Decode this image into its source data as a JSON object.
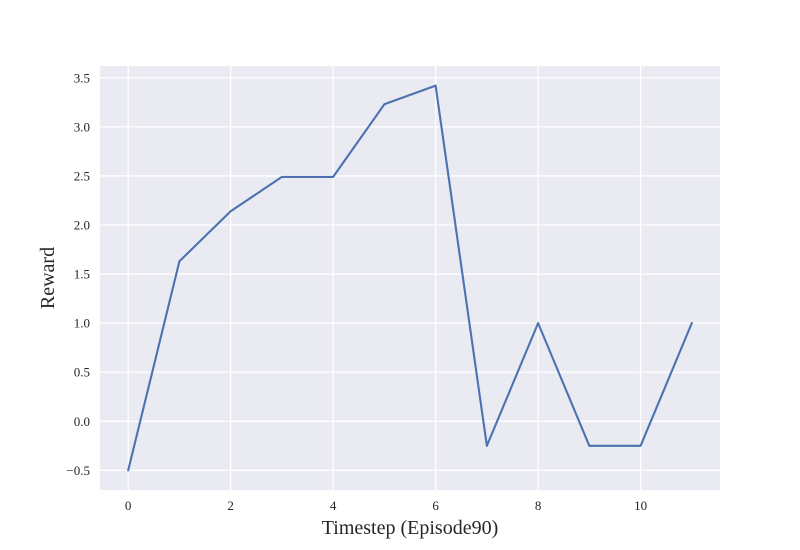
{
  "chart_data": {
    "type": "line",
    "xlabel": "Timestep (Episode90)",
    "ylabel": "Reward",
    "xlim": [
      -0.55,
      11.55
    ],
    "ylim": [
      -0.7,
      3.62
    ],
    "xticks": [
      0,
      2,
      4,
      6,
      8,
      10
    ],
    "xtick_labels": [
      "0",
      "2",
      "4",
      "6",
      "8",
      "10"
    ],
    "yticks": [
      -0.5,
      0.0,
      0.5,
      1.0,
      1.5,
      2.0,
      2.5,
      3.0,
      3.5
    ],
    "ytick_labels": [
      "−0.5",
      "0.0",
      "0.5",
      "1.0",
      "1.5",
      "2.0",
      "2.5",
      "3.0",
      "3.5"
    ],
    "grid": true,
    "background": "#eaeaf2",
    "series": [
      {
        "color": "#4c72b0",
        "x": [
          0,
          1,
          2,
          3,
          4,
          5,
          6,
          7,
          8,
          9,
          10,
          11
        ],
        "y": [
          -0.5,
          1.63,
          2.14,
          2.49,
          2.49,
          3.23,
          3.42,
          -0.25,
          1.0,
          -0.25,
          -0.25,
          1.0
        ]
      }
    ]
  }
}
